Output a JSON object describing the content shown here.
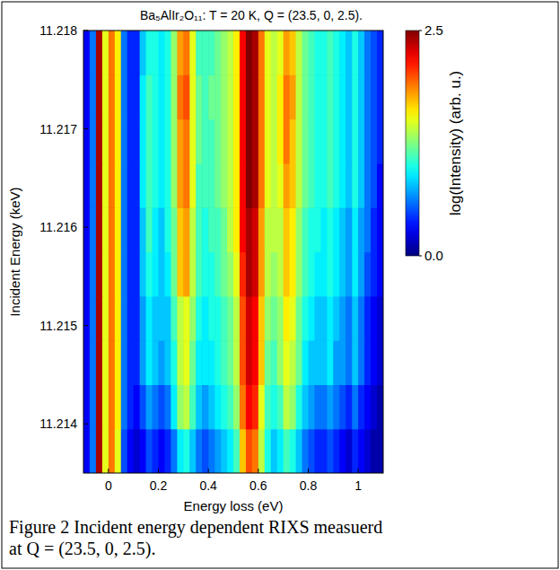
{
  "chart_data": {
    "type": "heatmap",
    "title": "Ba₅AlIr₂O₁₁: T = 20 K, Q = (23.5, 0, 2.5).",
    "x_label": "Energy loss (eV)",
    "y_label": "Incident Energy (keV)",
    "caption": "Figure 2 Incident energy dependent RIXS measuerd at Q = (23.5, 0, 2.5).",
    "xlim": [
      -0.1,
      1.1
    ],
    "ylim": [
      11.2135,
      11.218
    ],
    "xticks": [
      0,
      0.2,
      0.4,
      0.6,
      0.8,
      1
    ],
    "yticks": [
      11.214,
      11.215,
      11.216,
      11.217,
      11.218
    ],
    "grid": false,
    "x_edges": [
      -0.1,
      -0.075,
      -0.05,
      -0.025,
      0,
      0.025,
      0.05,
      0.075,
      0.1,
      0.125,
      0.15,
      0.175,
      0.2,
      0.225,
      0.25,
      0.275,
      0.3,
      0.325,
      0.35,
      0.375,
      0.4,
      0.425,
      0.45,
      0.475,
      0.5,
      0.525,
      0.55,
      0.575,
      0.6,
      0.625,
      0.65,
      0.675,
      0.7,
      0.725,
      0.75,
      0.775,
      0.8,
      0.825,
      0.85,
      0.875,
      0.9,
      0.925,
      0.95,
      0.975,
      1,
      1.025,
      1.05,
      1.075,
      1.1
    ],
    "y_edges": [
      11.2135,
      11.21395,
      11.2144,
      11.21485,
      11.2153,
      11.21575,
      11.2162,
      11.21665,
      11.2171,
      11.21755,
      11.218
    ],
    "z": [
      [
        0.3,
        0.6,
        2.4,
        1.5,
        1.9,
        1.5,
        0.5,
        0.3,
        0.2,
        0.3,
        0.5,
        0.4,
        0.3,
        0.4,
        0.6,
        0.9,
        1.0,
        0.8,
        0.6,
        0.5,
        0.6,
        0.7,
        0.8,
        0.9,
        1.1,
        1.7,
        2.0,
        1.9,
        1.4,
        1.0,
        0.8,
        0.9,
        1.1,
        1.0,
        0.8,
        0.6,
        0.5,
        0.4,
        0.4,
        0.5,
        0.4,
        0.3,
        0.2,
        0.4,
        0.3,
        0.2,
        0.1,
        0.1
      ],
      [
        0.3,
        0.6,
        2.4,
        1.5,
        1.9,
        1.6,
        0.6,
        0.4,
        0.3,
        0.5,
        0.7,
        0.6,
        0.5,
        0.6,
        0.9,
        1.3,
        1.4,
        1.1,
        0.8,
        0.7,
        0.8,
        0.9,
        1.0,
        1.1,
        1.3,
        1.9,
        2.2,
        2.1,
        1.5,
        1.1,
        1.0,
        1.1,
        1.4,
        1.3,
        1.0,
        0.8,
        0.7,
        0.6,
        0.6,
        0.7,
        0.6,
        0.5,
        0.4,
        0.6,
        0.4,
        0.3,
        0.2,
        0.1
      ],
      [
        0.3,
        0.6,
        2.4,
        1.5,
        1.9,
        1.6,
        0.6,
        0.4,
        0.4,
        0.7,
        0.9,
        0.8,
        0.7,
        0.8,
        1.0,
        1.4,
        1.5,
        1.2,
        0.9,
        0.9,
        0.9,
        1.0,
        1.1,
        1.2,
        1.4,
        2.0,
        2.3,
        2.2,
        1.7,
        1.2,
        1.1,
        1.3,
        1.5,
        1.4,
        1.2,
        0.9,
        0.8,
        0.8,
        0.8,
        0.9,
        0.7,
        0.7,
        0.6,
        0.8,
        0.6,
        0.4,
        0.3,
        0.2
      ],
      [
        0.3,
        0.6,
        2.4,
        1.5,
        1.9,
        1.6,
        0.6,
        0.4,
        0.4,
        0.7,
        0.9,
        0.8,
        0.8,
        0.8,
        1.1,
        1.4,
        1.5,
        1.3,
        1.0,
        0.9,
        1.0,
        1.0,
        1.1,
        1.2,
        1.4,
        2.0,
        2.3,
        2.2,
        1.7,
        1.3,
        1.2,
        1.3,
        1.6,
        1.5,
        1.2,
        1.0,
        0.9,
        0.8,
        0.8,
        0.9,
        0.8,
        0.7,
        0.6,
        0.8,
        0.6,
        0.4,
        0.3,
        0.2
      ],
      [
        0.3,
        0.6,
        2.4,
        1.5,
        1.9,
        1.6,
        0.6,
        0.4,
        0.4,
        0.8,
        1.0,
        0.9,
        0.8,
        0.9,
        1.2,
        1.7,
        1.8,
        1.4,
        1.1,
        1.0,
        1.0,
        1.1,
        1.2,
        1.3,
        1.5,
        2.1,
        2.4,
        2.3,
        1.8,
        1.4,
        1.3,
        1.4,
        1.7,
        1.6,
        1.3,
        1.1,
        1.0,
        0.9,
        0.9,
        1.0,
        0.9,
        0.8,
        0.7,
        0.9,
        0.7,
        0.5,
        0.4,
        0.3
      ],
      [
        0.3,
        0.6,
        2.4,
        1.5,
        1.9,
        1.6,
        0.6,
        0.4,
        0.4,
        0.8,
        1.1,
        0.9,
        0.8,
        1.0,
        1.2,
        1.7,
        1.8,
        1.4,
        1.1,
        1.0,
        1.1,
        1.1,
        1.2,
        1.4,
        1.6,
        2.2,
        2.4,
        2.3,
        1.8,
        1.4,
        1.4,
        1.4,
        1.7,
        1.6,
        1.3,
        1.1,
        1.0,
        1.0,
        0.9,
        1.0,
        0.9,
        0.8,
        0.7,
        0.9,
        0.7,
        0.6,
        0.4,
        0.3
      ],
      [
        0.3,
        0.6,
        2.4,
        1.5,
        1.9,
        1.6,
        0.6,
        0.4,
        0.4,
        0.9,
        1.1,
        1.0,
        0.9,
        1.0,
        1.3,
        1.8,
        1.9,
        1.5,
        1.1,
        1.1,
        1.1,
        1.2,
        1.3,
        1.4,
        1.6,
        2.2,
        2.5,
        2.4,
        1.9,
        1.5,
        1.4,
        1.5,
        1.8,
        1.7,
        1.4,
        1.2,
        1.1,
        1.0,
        1.0,
        1.1,
        1.0,
        0.9,
        0.8,
        1.0,
        0.8,
        0.6,
        0.5,
        0.3
      ],
      [
        0.3,
        0.6,
        2.4,
        1.5,
        1.9,
        1.6,
        0.6,
        0.4,
        0.4,
        0.9,
        1.1,
        1.0,
        0.9,
        1.0,
        1.3,
        1.8,
        1.9,
        1.5,
        1.2,
        1.1,
        1.1,
        1.2,
        1.3,
        1.4,
        1.6,
        2.2,
        2.5,
        2.4,
        1.9,
        1.5,
        1.4,
        1.6,
        1.9,
        1.7,
        1.4,
        1.2,
        1.1,
        1.0,
        1.0,
        1.1,
        1.0,
        0.9,
        0.8,
        1.0,
        0.8,
        0.6,
        0.5,
        0.4
      ],
      [
        0.3,
        0.6,
        2.4,
        1.5,
        1.9,
        1.6,
        0.6,
        0.4,
        0.4,
        0.9,
        1.1,
        1.0,
        0.9,
        1.0,
        1.3,
        1.9,
        2.0,
        1.5,
        1.2,
        1.1,
        1.2,
        1.2,
        1.3,
        1.4,
        1.6,
        2.2,
        2.5,
        2.4,
        1.9,
        1.5,
        1.4,
        1.6,
        1.9,
        1.8,
        1.4,
        1.2,
        1.1,
        1.0,
        1.0,
        1.1,
        1.0,
        0.9,
        0.8,
        1.0,
        0.8,
        0.6,
        0.5,
        0.4
      ],
      [
        0.3,
        0.6,
        2.4,
        1.5,
        1.9,
        1.6,
        0.6,
        0.4,
        0.4,
        0.8,
        1.0,
        1.0,
        0.9,
        1.0,
        1.3,
        1.8,
        1.9,
        1.5,
        1.1,
        1.1,
        1.1,
        1.2,
        1.3,
        1.4,
        1.6,
        2.2,
        2.5,
        2.4,
        1.9,
        1.5,
        1.4,
        1.5,
        1.8,
        1.7,
        1.4,
        1.2,
        1.1,
        1.0,
        1.0,
        1.1,
        1.0,
        0.9,
        0.8,
        1.0,
        0.8,
        0.6,
        0.5,
        0.4
      ]
    ],
    "colorbar": {
      "label": "log(Intensity) (arb. u.)",
      "range": [
        0,
        2.5
      ],
      "ticks": [
        {
          "value": 0,
          "label": "0.0"
        },
        {
          "value": 2.5,
          "label": "2.5"
        }
      ]
    }
  }
}
